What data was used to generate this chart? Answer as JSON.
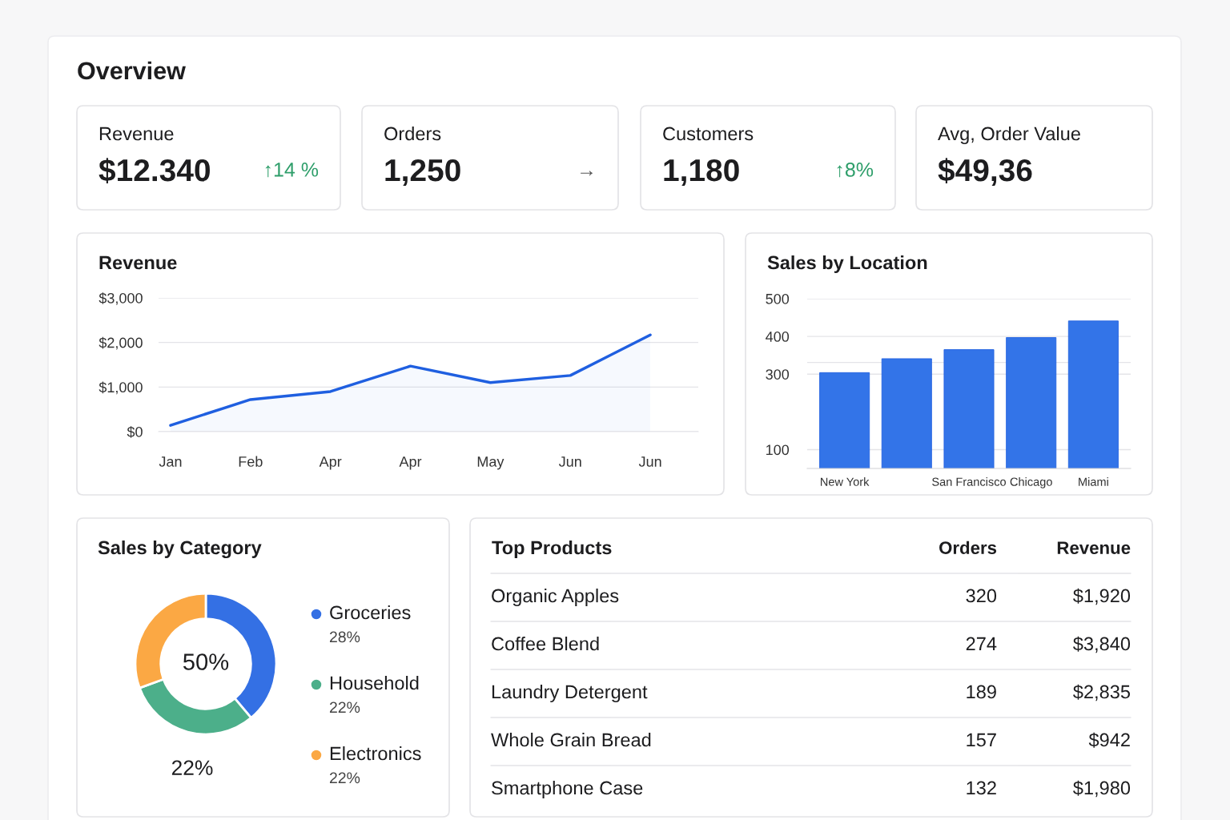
{
  "chart_data": [
    {
      "type": "other",
      "title": "Overview",
      "categories": [
        "Revenue",
        "Orders",
        "Customers",
        "Avg, Order Value"
      ],
      "value_labels": [
        "$12.340",
        "1,250",
        "1,180",
        "$49,36"
      ],
      "annotations": [
        "↑14 %",
        "→",
        "↑8%"
      ]
    },
    {
      "type": "area",
      "title": "Revenue",
      "color": "#1f5fe0",
      "grid": "y",
      "categories": [
        "Jan",
        "Feb",
        "Apr",
        "Apr",
        "May",
        "Jun",
        "Jun"
      ],
      "values": [
        140,
        720,
        900,
        1470,
        1100,
        1260,
        2170
      ],
      "ylim": [
        0,
        3000
      ],
      "yticks": [
        {
          "value": 0,
          "label": "$0"
        },
        {
          "value": 1000,
          "label": "$1,000"
        },
        {
          "value": 2000,
          "label": "$2,000"
        },
        {
          "value": 3000,
          "label": "$3,000"
        }
      ]
    },
    {
      "type": "bar",
      "title": "Sales by Location",
      "color": "#3374e8",
      "grid": "y",
      "categories": [
        "New York",
        null,
        "San Francisco",
        "Chicago",
        "Miami"
      ],
      "values": [
        304,
        341,
        365,
        397,
        441
      ],
      "ylim": [
        50,
        500
      ],
      "yticks": [
        500,
        400,
        {
          "value": 331,
          "label": null
        },
        300,
        100
      ]
    },
    {
      "type": "donut",
      "title": "Sales by Category",
      "legend": "right",
      "categories": [
        "Groceries",
        "Household",
        "Electronics"
      ],
      "values": [
        28,
        22,
        22
      ],
      "colors": [
        "#3470e4",
        "#4caf8a",
        "#fba844"
      ],
      "value_labels": [
        "28%",
        "22%",
        "22%"
      ],
      "annotations": [
        "50%",
        "22%"
      ]
    },
    {
      "type": "other",
      "title": "Top Products",
      "data_labels": true,
      "categories": [
        "Organic Apples",
        "Coffee Blend",
        "Laundry Detergent",
        "Whole Grain Bread",
        "Smartphone Case"
      ],
      "series": [
        {
          "name": "Orders",
          "values": [
            320,
            274,
            189,
            157,
            132
          ]
        },
        {
          "name": "Revenue",
          "values": [
            1920,
            3840,
            2835,
            942,
            1980
          ],
          "value_labels": [
            "$1,920",
            "$3,840",
            "$2,835",
            "$942",
            "$1,980"
          ]
        }
      ]
    }
  ]
}
